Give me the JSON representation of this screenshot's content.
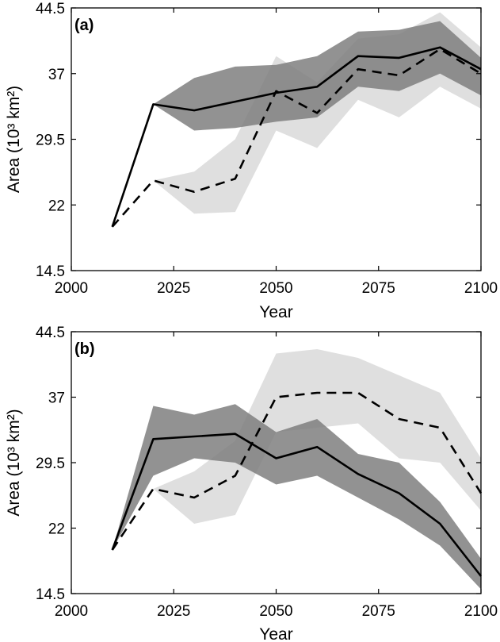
{
  "chart_data": [
    {
      "type": "line",
      "panel_label": "(a)",
      "xlabel": "Year",
      "ylabel": "Area (10³ km²)",
      "xlim": [
        2000,
        2100
      ],
      "ylim": [
        14.5,
        44.5
      ],
      "xticks": [
        2000,
        2025,
        2050,
        2075,
        2100
      ],
      "yticks": [
        14.5,
        22,
        29.5,
        37,
        44.5
      ],
      "grid": false,
      "legend": "none",
      "x": [
        2010,
        2020,
        2030,
        2040,
        2050,
        2060,
        2070,
        2080,
        2090,
        2100
      ],
      "series": [
        {
          "style": "solid",
          "color": "#000000",
          "band_color": "#7f7f7f",
          "values": [
            19.5,
            33.5,
            32.8,
            33.8,
            34.8,
            35.5,
            39.0,
            38.8,
            40.0,
            37.5
          ],
          "band_low": [
            19.5,
            33.5,
            30.5,
            30.8,
            31.5,
            32.0,
            35.5,
            35.0,
            37.0,
            34.5
          ],
          "band_high": [
            19.5,
            33.5,
            36.5,
            37.8,
            38.0,
            39.0,
            41.8,
            42.0,
            43.0,
            38.8
          ]
        },
        {
          "style": "dashed",
          "color": "#000000",
          "band_color": "#d9d9d9",
          "values": [
            19.5,
            24.8,
            23.5,
            25.0,
            35.0,
            32.5,
            37.5,
            36.8,
            39.8,
            37.0
          ],
          "band_low": [
            19.5,
            24.8,
            21.0,
            21.2,
            30.5,
            28.5,
            34.0,
            32.0,
            35.5,
            33.0
          ],
          "band_high": [
            19.5,
            24.8,
            25.8,
            29.5,
            39.0,
            36.0,
            41.0,
            41.5,
            44.0,
            40.0
          ]
        }
      ]
    },
    {
      "type": "line",
      "panel_label": "(b)",
      "xlabel": "Year",
      "ylabel": "Area (10³ km²)",
      "xlim": [
        2000,
        2100
      ],
      "ylim": [
        14.5,
        44.5
      ],
      "xticks": [
        2000,
        2025,
        2050,
        2075,
        2100
      ],
      "yticks": [
        14.5,
        22,
        29.5,
        37,
        44.5
      ],
      "grid": false,
      "legend": "none",
      "x": [
        2010,
        2020,
        2030,
        2040,
        2050,
        2060,
        2070,
        2080,
        2090,
        2100
      ],
      "series": [
        {
          "style": "solid",
          "color": "#000000",
          "band_color": "#7f7f7f",
          "values": [
            19.5,
            32.2,
            32.5,
            32.8,
            30.0,
            31.3,
            28.2,
            26.0,
            22.5,
            16.5
          ],
          "band_low": [
            19.5,
            28.0,
            30.0,
            29.5,
            27.0,
            28.0,
            25.5,
            23.0,
            20.0,
            15.0
          ],
          "band_high": [
            19.5,
            36.0,
            35.0,
            36.2,
            33.0,
            34.5,
            30.5,
            29.5,
            25.0,
            18.5
          ]
        },
        {
          "style": "dashed",
          "color": "#000000",
          "band_color": "#d9d9d9",
          "values": [
            19.5,
            26.5,
            25.5,
            28.0,
            37.0,
            37.5,
            37.5,
            34.5,
            33.5,
            26.0
          ],
          "band_low": [
            19.5,
            26.5,
            22.5,
            23.5,
            33.0,
            33.5,
            34.0,
            30.0,
            29.5,
            24.0
          ],
          "band_high": [
            19.5,
            26.5,
            28.5,
            32.0,
            42.0,
            42.5,
            41.5,
            39.5,
            37.5,
            30.0
          ]
        }
      ]
    }
  ]
}
